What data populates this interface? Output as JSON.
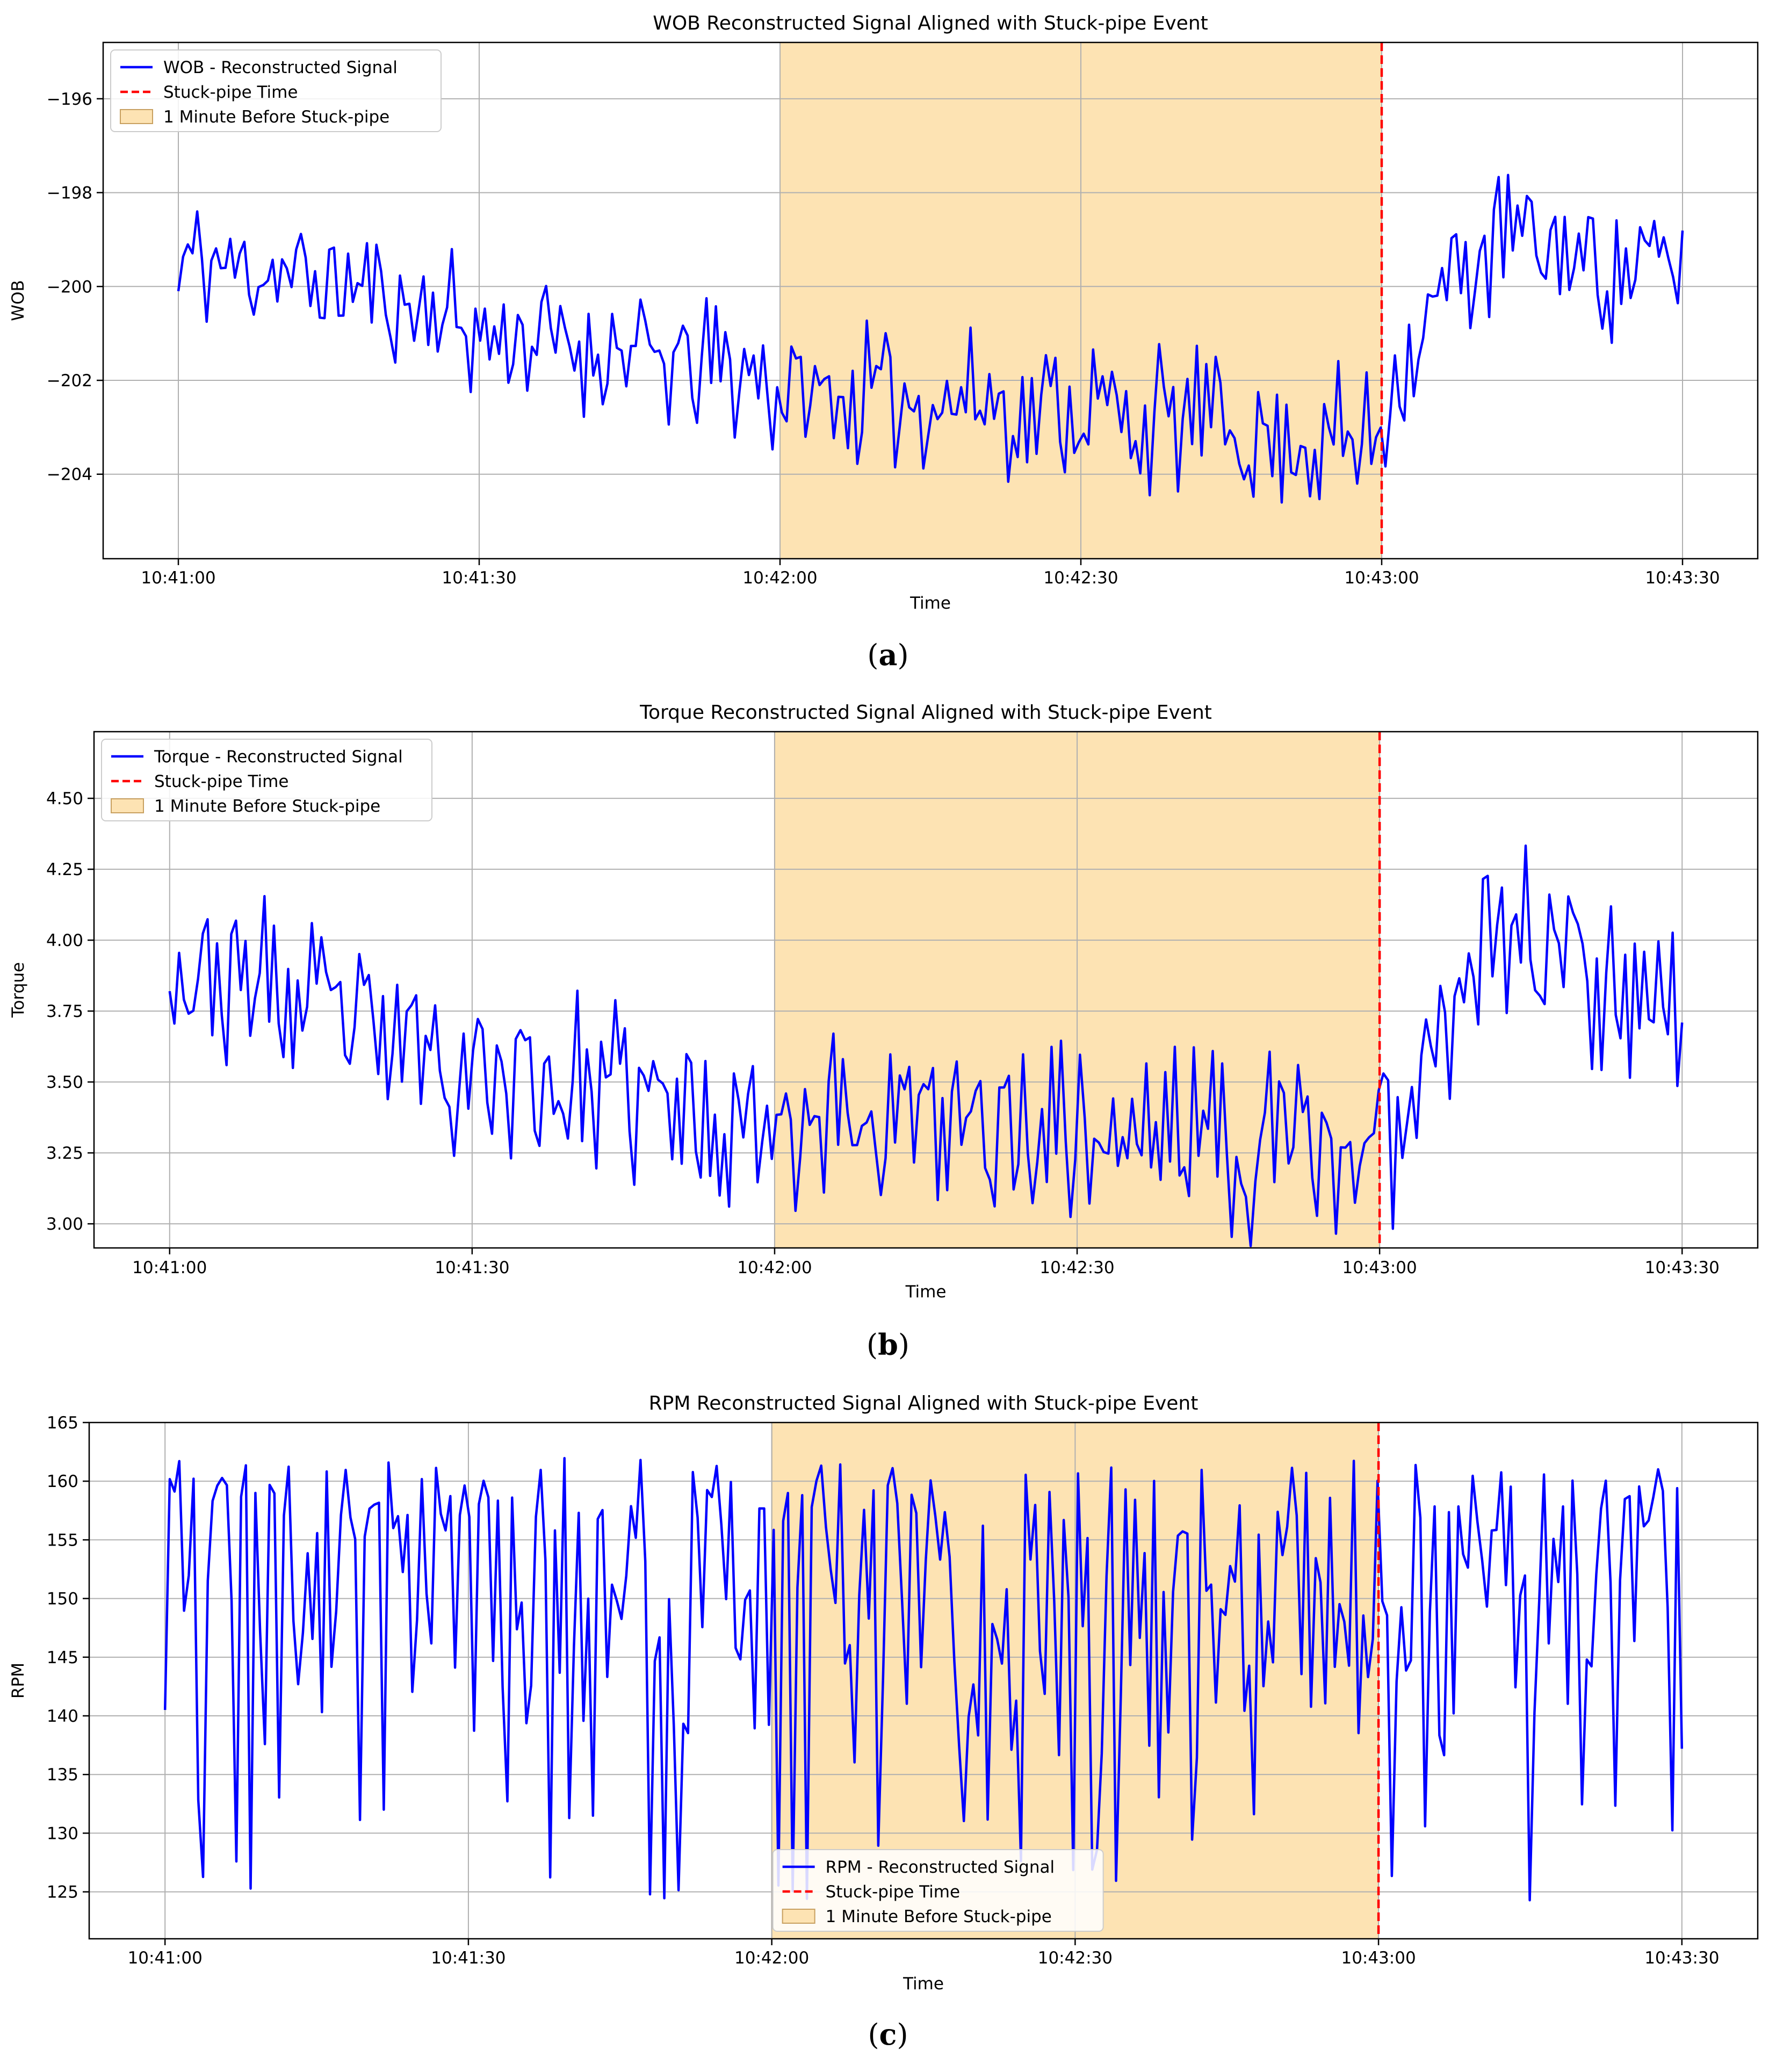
{
  "chart_data": [
    {
      "type": "line",
      "caption": "a",
      "title": "WOB Reconstructed Signal Aligned with Stuck-pipe Event",
      "xlabel": "Time",
      "ylabel": "WOB",
      "xticks": [
        "10:41:00",
        "10:41:30",
        "10:42:00",
        "10:42:30",
        "10:43:00",
        "10:43:30"
      ],
      "xlim_seconds": [
        -7.5,
        157.5
      ],
      "ylim": [
        -205.8,
        -194.8
      ],
      "yticks": [
        -204,
        -202,
        -200,
        -198,
        -196
      ],
      "legend_position": "upper-left",
      "legend": [
        "WOB - Reconstructed Signal",
        "Stuck-pipe Time",
        "1 Minute Before Stuck-pipe"
      ],
      "shade_seconds": [
        60,
        120
      ],
      "event_seconds": 120,
      "series": [
        {
          "name": "WOB - Reconstructed Signal",
          "trend": [
            [
              0,
              -199.4
            ],
            [
              10,
              -199.7
            ],
            [
              20,
              -200.2
            ],
            [
              30,
              -200.9
            ],
            [
              40,
              -201.2
            ],
            [
              50,
              -201.7
            ],
            [
              58,
              -201.9
            ],
            [
              60,
              -202.3
            ],
            [
              75,
              -202.4
            ],
            [
              90,
              -202.6
            ],
            [
              105,
              -203.0
            ],
            [
              119,
              -203.4
            ],
            [
              122,
              -201.5
            ],
            [
              125,
              -200.6
            ],
            [
              128,
              -199.5
            ],
            [
              133,
              -199.0
            ],
            [
              140,
              -199.4
            ],
            [
              150,
              -199.6
            ],
            [
              150,
              -199.6
            ]
          ],
          "spread": [
            [
              0,
              1.5
            ],
            [
              100,
              1.7
            ],
            [
              140,
              1.8
            ]
          ],
          "point_count": 320,
          "seed": 11,
          "start_value": -200.1
        }
      ]
    },
    {
      "type": "line",
      "caption": "b",
      "title": "Torque Reconstructed Signal Aligned with Stuck-pipe Event",
      "xlabel": "Time",
      "ylabel": "Torque",
      "xticks": [
        "10:41:00",
        "10:41:30",
        "10:42:00",
        "10:42:30",
        "10:43:00",
        "10:43:30"
      ],
      "xlim_seconds": [
        -7.5,
        157.5
      ],
      "ylim": [
        2.915,
        4.735
      ],
      "yticks": [
        3.0,
        3.25,
        3.5,
        3.75,
        4.0,
        4.25,
        4.5
      ],
      "ytick_labels": [
        "3.00",
        "3.25",
        "3.50",
        "3.75",
        "4.00",
        "4.25",
        "4.50"
      ],
      "legend_position": "upper-left",
      "legend": [
        "Torque - Reconstructed Signal",
        "Stuck-pipe Time",
        "1 Minute Before Stuck-pipe"
      ],
      "shade_seconds": [
        60,
        120
      ],
      "event_seconds": 120,
      "series": [
        {
          "name": "Torque - Reconstructed Signal",
          "trend": [
            [
              0,
              3.87
            ],
            [
              10,
              3.82
            ],
            [
              20,
              3.66
            ],
            [
              30,
              3.56
            ],
            [
              40,
              3.48
            ],
            [
              50,
              3.42
            ],
            [
              60,
              3.39
            ],
            [
              75,
              3.36
            ],
            [
              90,
              3.33
            ],
            [
              105,
              3.28
            ],
            [
              119,
              3.27
            ],
            [
              122,
              3.38
            ],
            [
              125,
              3.62
            ],
            [
              128,
              3.95
            ],
            [
              132,
              4.05
            ],
            [
              140,
              3.95
            ],
            [
              150,
              3.82
            ],
            [
              150,
              3.82
            ]
          ],
          "spread": [
            [
              0,
              0.34
            ],
            [
              100,
              0.36
            ],
            [
              140,
              0.42
            ]
          ],
          "point_count": 320,
          "seed": 23,
          "start_value": 3.82
        }
      ]
    },
    {
      "type": "line",
      "caption": "c",
      "title": "RPM Reconstructed Signal Aligned with Stuck-pipe Event",
      "xlabel": "Time",
      "ylabel": "RPM",
      "xticks": [
        "10:41:00",
        "10:41:30",
        "10:42:00",
        "10:42:30",
        "10:43:00",
        "10:43:30"
      ],
      "xlim_seconds": [
        -7.5,
        157.5
      ],
      "ylim": [
        121.0,
        165.0
      ],
      "yticks": [
        125,
        130,
        135,
        140,
        145,
        150,
        155,
        160,
        165
      ],
      "legend_position": "lower-center",
      "legend": [
        "RPM - Reconstructed Signal",
        "Stuck-pipe Time",
        "1 Minute Before Stuck-pipe"
      ],
      "shade_seconds": [
        60,
        120
      ],
      "event_seconds": 120,
      "series": [
        {
          "name": "RPM - Reconstructed Signal",
          "trend": [
            [
              0,
              151
            ],
            [
              150,
              151
            ]
          ],
          "spread": [
            [
              0,
              10
            ],
            [
              150,
              10
            ]
          ],
          "dips": true,
          "point_count": 320,
          "seed": 37,
          "start_value": 140.5
        }
      ]
    }
  ],
  "colors": {
    "line": "#0000ff",
    "event": "#ff0000",
    "shade": "#fde3b3",
    "grid": "#b0b0b0"
  }
}
